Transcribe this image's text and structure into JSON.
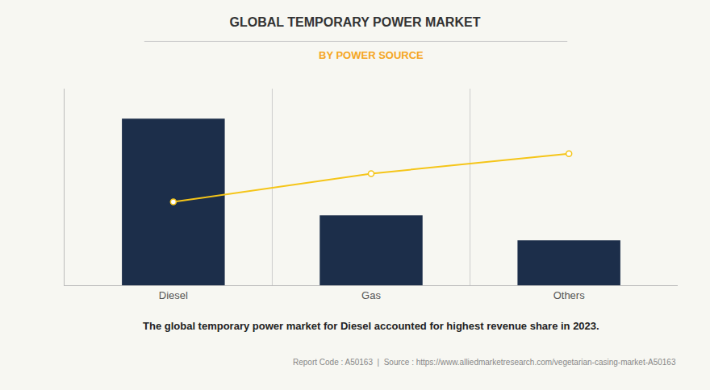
{
  "chart_data": {
    "type": "bar",
    "title": "GLOBAL TEMPORARY POWER MARKET",
    "subtitle": "BY POWER SOURCE",
    "categories": [
      "Diesel",
      "Gas",
      "Others"
    ],
    "series": [
      {
        "type": "bar",
        "color": "#1c2e4a",
        "values": [
          1.0,
          0.42,
          0.27
        ]
      },
      {
        "type": "line",
        "color": "#f5c518",
        "marker": "circle",
        "values": [
          0.5,
          0.67,
          0.79
        ]
      }
    ],
    "ylim": [
      0,
      1.18
    ],
    "yticks": [],
    "grid": false,
    "tick_labels": "x",
    "annotations": [
      "The global temporary power market for Diesel accounted for highest revenue share in 2023.",
      "Report Code : A50163  |  Source : https://www.alliedmarketresearch.com/vegetarian-casing-market-A50163"
    ]
  }
}
